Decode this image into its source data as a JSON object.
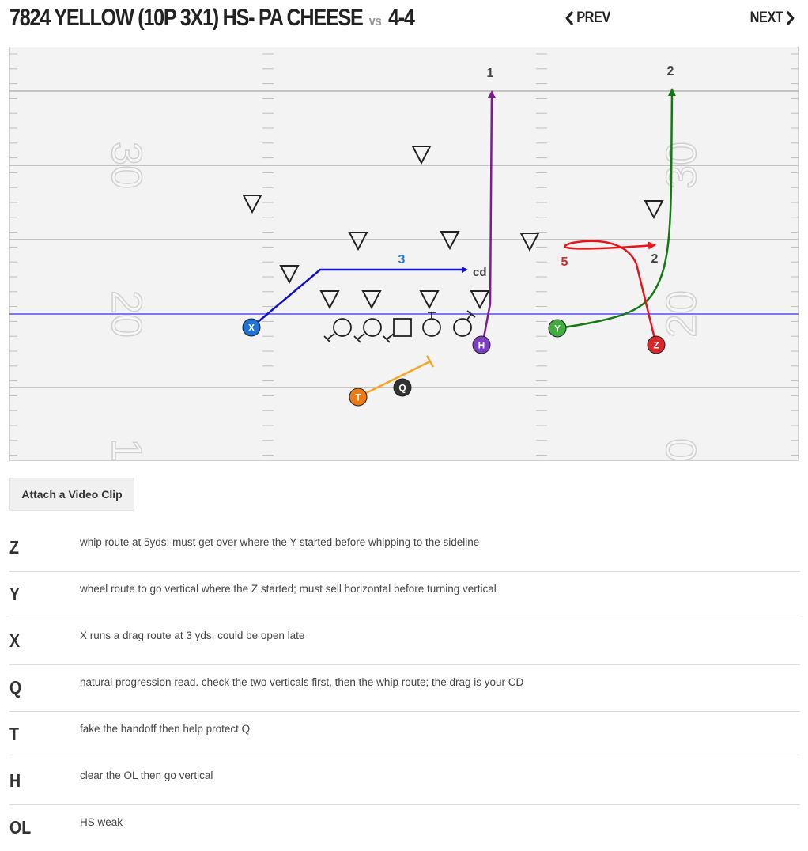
{
  "header": {
    "play_name": "7824 YELLOW (10P 3X1) HS- PA CHEESE",
    "vs_label": "vs",
    "defense": "4-4",
    "prev_label": "PREV",
    "next_label": "NEXT"
  },
  "field": {
    "yard_numbers": [
      "30",
      "20",
      "1",
      "30",
      "20",
      "0"
    ],
    "players": {
      "X": {
        "label": "X",
        "color": "#1f72d6"
      },
      "H": {
        "label": "H",
        "color": "#7b3fc4"
      },
      "Y": {
        "label": "Y",
        "color": "#3fae3f"
      },
      "Z": {
        "label": "Z",
        "color": "#d9262b"
      },
      "T": {
        "label": "T",
        "color": "#f07a12"
      },
      "Q": {
        "label": "Q",
        "color": "#333333"
      }
    },
    "route_labels": {
      "h_vertical": "1",
      "y_vertical": "2",
      "x_drag": "3",
      "drag_cd": "cd",
      "z_whip": "5",
      "z_whip_end": "2"
    },
    "route_colors": {
      "X": "#1010cc",
      "H": "#7b1d8e",
      "Y": "#137a13",
      "Z": "#e8141a",
      "T": "#f5a623",
      "los": "#7a7aee"
    }
  },
  "video_button": "Attach a Video Clip",
  "notes": [
    {
      "pos": "Z",
      "text": "whip route at 5yds; must get over where the Y started before whipping to the sideline"
    },
    {
      "pos": "Y",
      "text": "wheel route to go vertical where the Z started; must sell horizontal before turning vertical"
    },
    {
      "pos": "X",
      "text": "X runs a drag route at 3 yds; could be open late"
    },
    {
      "pos": "Q",
      "text": "natural progression read. check the two verticals first, then the whip route; the drag is your CD"
    },
    {
      "pos": "T",
      "text": "fake the handoff then help protect Q"
    },
    {
      "pos": "H",
      "text": "clear the OL then go vertical"
    },
    {
      "pos": "OL",
      "text": "HS weak"
    }
  ]
}
